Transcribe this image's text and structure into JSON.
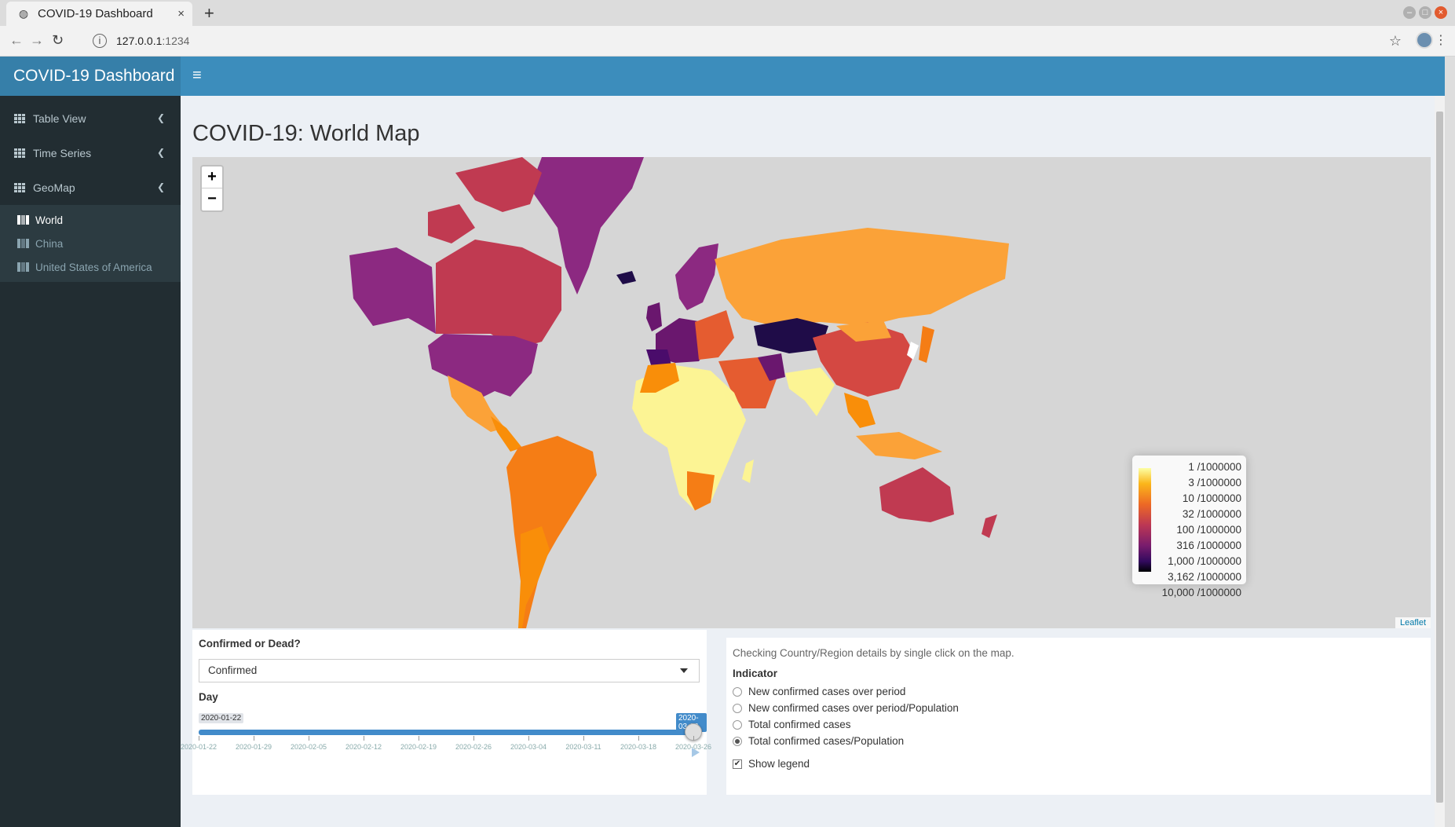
{
  "browser": {
    "tab_title": "COVID-19 Dashboard",
    "url_host": "127.0.0.1",
    "url_port": ":1234",
    "new_tab": "+",
    "close_glyph": "×"
  },
  "app": {
    "brand": "COVID-19 Dashboard",
    "hamburger": "≡"
  },
  "sidebar": {
    "items": [
      {
        "label": "Table View"
      },
      {
        "label": "Time Series"
      },
      {
        "label": "GeoMap"
      }
    ],
    "geomap_sub": [
      {
        "label": "World"
      },
      {
        "label": "China"
      },
      {
        "label": "United States of America"
      }
    ]
  },
  "page": {
    "title": "COVID-19: World Map"
  },
  "map": {
    "zoom_in": "+",
    "zoom_out": "−",
    "attribution": "Leaflet",
    "legend": [
      "1 /1000000",
      "3 /1000000",
      "10 /1000000",
      "32 /1000000",
      "100 /1000000",
      "316 /1000000",
      "1,000 /1000000",
      "3,162 /1000000",
      "10,000 /1000000"
    ]
  },
  "controls": {
    "confirmed_or_dead_label": "Confirmed or Dead?",
    "confirmed_or_dead_value": "Confirmed",
    "day_label": "Day",
    "day_min": "2020-01-22",
    "day_max": "2020-03-26",
    "day_value_fraction": 1.0,
    "ticks": [
      "2020-01-22",
      "2020-01-29",
      "2020-02-05",
      "2020-02-12",
      "2020-02-19",
      "2020-02-26",
      "2020-03-04",
      "2020-03-11",
      "2020-03-18",
      "2020-03-26"
    ]
  },
  "details": {
    "hint": "Checking Country/Region details by single click on the map.",
    "indicator_label": "Indicator",
    "indicators": [
      {
        "label": "New confirmed cases over period",
        "checked": false
      },
      {
        "label": "New confirmed cases over period/Population",
        "checked": false
      },
      {
        "label": "Total confirmed cases",
        "checked": false
      },
      {
        "label": "Total confirmed cases/Population",
        "checked": true
      }
    ],
    "show_legend_label": "Show legend",
    "show_legend_checked": true
  },
  "colors": {
    "header": "#3c8dbc",
    "brand": "#367fa9",
    "sidebar": "#222d32",
    "slider": "#428bca"
  }
}
